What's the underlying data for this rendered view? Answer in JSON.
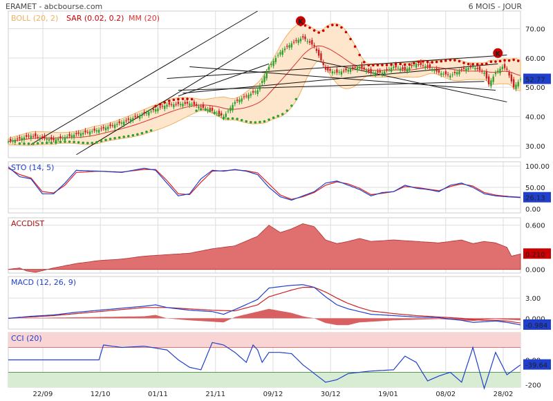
{
  "header": {
    "left": "ERAMET - abcbourse.com",
    "right": "6 MOIS - JOUR"
  },
  "colors": {
    "up": "#2ea02e",
    "down": "#cc2020",
    "boll": "#f0b060",
    "sar": "#cc0000",
    "mm": "#dd3030",
    "sto_k": "#1f3fcc",
    "sto_d": "#dd2020",
    "accdist": "#e07070",
    "macd": "#1f3fcc",
    "signal": "#cc2020",
    "hist": "#d86060",
    "cci": "#1f3fcc",
    "cci_top": "#f9d4d4",
    "cci_bottom": "#d7ecd3",
    "tag_blue": "#1f3fcc",
    "tag_red": "#cc0000"
  },
  "chart_data": [
    {
      "type": "candlestick",
      "title": "ERAMET",
      "subtitle": "6 MOIS - JOUR",
      "x_labels": [
        "22/09",
        "12/10",
        "01/11",
        "21/11",
        "09/12",
        "30/12",
        "19/01",
        "08/02",
        "28/02"
      ],
      "y_ticks": [
        30.0,
        40.0,
        50.0,
        60.0,
        70.0
      ],
      "ylim": [
        26,
        76
      ],
      "legend": [
        "BOLL (20, 2)",
        "SAR (0.02, 0.2)",
        "MM (20)"
      ],
      "last_value": "52.77",
      "close_points": [
        [
          0,
          31.5
        ],
        [
          10,
          33.5
        ],
        [
          20,
          32
        ],
        [
          30,
          34
        ],
        [
          40,
          35.5
        ],
        [
          50,
          38
        ],
        [
          60,
          41
        ],
        [
          70,
          44
        ],
        [
          80,
          44.5
        ],
        [
          90,
          42
        ],
        [
          95,
          40
        ],
        [
          100,
          45
        ],
        [
          105,
          47
        ],
        [
          110,
          49
        ],
        [
          115,
          57
        ],
        [
          120,
          62
        ],
        [
          125,
          65
        ],
        [
          130,
          67
        ],
        [
          135,
          64
        ],
        [
          140,
          56
        ],
        [
          145,
          55
        ],
        [
          150,
          56
        ],
        [
          155,
          57
        ],
        [
          160,
          55
        ],
        [
          165,
          55
        ],
        [
          170,
          57
        ],
        [
          175,
          56
        ],
        [
          180,
          58
        ],
        [
          185,
          57
        ],
        [
          190,
          55
        ],
        [
          195,
          54
        ],
        [
          200,
          56
        ],
        [
          205,
          57
        ],
        [
          210,
          55
        ],
        [
          212,
          51
        ],
        [
          215,
          55
        ],
        [
          218,
          57
        ],
        [
          220,
          56
        ],
        [
          222,
          52
        ],
        [
          223,
          50
        ],
        [
          226,
          52.77
        ]
      ],
      "n_days": 227,
      "markers": [
        {
          "label": "K",
          "near_x": 129
        },
        {
          "label": "K",
          "near_x": 216
        }
      ]
    },
    {
      "type": "line",
      "title": "STO (14, 5)",
      "y_ticks": [
        "0.00",
        "50.00",
        "100.00"
      ],
      "ylim": [
        -10,
        110
      ],
      "last_value": "26.13",
      "k": [
        [
          0,
          98
        ],
        [
          5,
          75
        ],
        [
          10,
          70
        ],
        [
          15,
          35
        ],
        [
          20,
          35
        ],
        [
          25,
          60
        ],
        [
          30,
          90
        ],
        [
          40,
          88
        ],
        [
          50,
          85
        ],
        [
          60,
          95
        ],
        [
          65,
          90
        ],
        [
          70,
          60
        ],
        [
          75,
          30
        ],
        [
          80,
          35
        ],
        [
          85,
          70
        ],
        [
          90,
          90
        ],
        [
          95,
          88
        ],
        [
          100,
          92
        ],
        [
          105,
          88
        ],
        [
          110,
          80
        ],
        [
          115,
          50
        ],
        [
          120,
          28
        ],
        [
          125,
          20
        ],
        [
          130,
          30
        ],
        [
          135,
          40
        ],
        [
          140,
          60
        ],
        [
          145,
          65
        ],
        [
          150,
          55
        ],
        [
          155,
          45
        ],
        [
          160,
          30
        ],
        [
          165,
          38
        ],
        [
          170,
          40
        ],
        [
          175,
          55
        ],
        [
          180,
          48
        ],
        [
          185,
          45
        ],
        [
          190,
          40
        ],
        [
          195,
          55
        ],
        [
          200,
          60
        ],
        [
          205,
          50
        ],
        [
          210,
          35
        ],
        [
          215,
          30
        ],
        [
          220,
          28
        ],
        [
          226,
          26
        ]
      ],
      "d": [
        [
          0,
          95
        ],
        [
          5,
          80
        ],
        [
          10,
          72
        ],
        [
          15,
          40
        ],
        [
          20,
          37
        ],
        [
          25,
          55
        ],
        [
          30,
          85
        ],
        [
          40,
          88
        ],
        [
          50,
          86
        ],
        [
          60,
          92
        ],
        [
          65,
          92
        ],
        [
          70,
          66
        ],
        [
          75,
          35
        ],
        [
          80,
          33
        ],
        [
          85,
          62
        ],
        [
          90,
          88
        ],
        [
          95,
          89
        ],
        [
          100,
          91
        ],
        [
          105,
          89
        ],
        [
          110,
          84
        ],
        [
          115,
          58
        ],
        [
          120,
          32
        ],
        [
          125,
          22
        ],
        [
          130,
          28
        ],
        [
          135,
          38
        ],
        [
          140,
          55
        ],
        [
          145,
          63
        ],
        [
          150,
          58
        ],
        [
          155,
          48
        ],
        [
          160,
          33
        ],
        [
          165,
          36
        ],
        [
          170,
          40
        ],
        [
          175,
          52
        ],
        [
          180,
          50
        ],
        [
          185,
          46
        ],
        [
          190,
          42
        ],
        [
          195,
          52
        ],
        [
          200,
          58
        ],
        [
          205,
          53
        ],
        [
          210,
          38
        ],
        [
          215,
          32
        ],
        [
          220,
          29
        ],
        [
          226,
          27
        ]
      ]
    },
    {
      "type": "area",
      "title": "ACCDIST",
      "y_ticks": [
        "0.000",
        "0.600"
      ],
      "ylim": [
        -0.05,
        0.7
      ],
      "last_value": "0.210",
      "values": [
        [
          0,
          0
        ],
        [
          5,
          0.02
        ],
        [
          8,
          -0.02
        ],
        [
          12,
          -0.04
        ],
        [
          20,
          0.02
        ],
        [
          30,
          0.08
        ],
        [
          40,
          0.12
        ],
        [
          50,
          0.14
        ],
        [
          60,
          0.18
        ],
        [
          70,
          0.2
        ],
        [
          80,
          0.22
        ],
        [
          90,
          0.28
        ],
        [
          100,
          0.32
        ],
        [
          110,
          0.45
        ],
        [
          115,
          0.6
        ],
        [
          120,
          0.5
        ],
        [
          125,
          0.55
        ],
        [
          130,
          0.62
        ],
        [
          135,
          0.58
        ],
        [
          140,
          0.4
        ],
        [
          145,
          0.35
        ],
        [
          150,
          0.38
        ],
        [
          155,
          0.42
        ],
        [
          160,
          0.38
        ],
        [
          170,
          0.4
        ],
        [
          180,
          0.38
        ],
        [
          190,
          0.36
        ],
        [
          200,
          0.4
        ],
        [
          205,
          0.35
        ],
        [
          210,
          0.38
        ],
        [
          215,
          0.36
        ],
        [
          220,
          0.3
        ],
        [
          222,
          0.18
        ],
        [
          226,
          0.21
        ]
      ]
    },
    {
      "type": "line",
      "title": "MACD (12, 26, 9)",
      "y_ticks": [
        "0.000",
        "3.00"
      ],
      "ylim": [
        -1.6,
        6.2
      ],
      "last_value": "-0.984",
      "macd": [
        [
          0,
          0
        ],
        [
          10,
          0.3
        ],
        [
          20,
          0.5
        ],
        [
          30,
          0.9
        ],
        [
          40,
          1.2
        ],
        [
          50,
          1.5
        ],
        [
          60,
          1.8
        ],
        [
          65,
          2.0
        ],
        [
          70,
          1.6
        ],
        [
          80,
          1.2
        ],
        [
          90,
          1.0
        ],
        [
          95,
          0.6
        ],
        [
          100,
          1.3
        ],
        [
          110,
          2.8
        ],
        [
          115,
          4.5
        ],
        [
          125,
          4.9
        ],
        [
          130,
          5.0
        ],
        [
          135,
          4.6
        ],
        [
          140,
          3.2
        ],
        [
          145,
          2.0
        ],
        [
          150,
          1.4
        ],
        [
          155,
          1.0
        ],
        [
          160,
          0.6
        ],
        [
          170,
          0.4
        ],
        [
          180,
          0.2
        ],
        [
          190,
          0.1
        ],
        [
          200,
          -0.3
        ],
        [
          205,
          -0.6
        ],
        [
          210,
          -0.5
        ],
        [
          215,
          -0.4
        ],
        [
          220,
          -0.6
        ],
        [
          226,
          -0.98
        ]
      ],
      "signal": [
        [
          0,
          0
        ],
        [
          10,
          0.2
        ],
        [
          20,
          0.4
        ],
        [
          30,
          0.7
        ],
        [
          40,
          1.0
        ],
        [
          50,
          1.3
        ],
        [
          60,
          1.6
        ],
        [
          70,
          1.6
        ],
        [
          80,
          1.4
        ],
        [
          90,
          1.2
        ],
        [
          100,
          1.1
        ],
        [
          110,
          2.0
        ],
        [
          115,
          3.2
        ],
        [
          125,
          4.2
        ],
        [
          130,
          4.6
        ],
        [
          135,
          4.6
        ],
        [
          140,
          3.9
        ],
        [
          145,
          3.0
        ],
        [
          150,
          2.2
        ],
        [
          155,
          1.6
        ],
        [
          160,
          1.1
        ],
        [
          170,
          0.7
        ],
        [
          180,
          0.4
        ],
        [
          190,
          0.2
        ],
        [
          200,
          0.0
        ],
        [
          205,
          -0.2
        ],
        [
          210,
          -0.3
        ],
        [
          215,
          -0.3
        ],
        [
          220,
          -0.4
        ],
        [
          226,
          -0.7
        ]
      ],
      "hist": [
        [
          0,
          0
        ],
        [
          60,
          0.3
        ],
        [
          65,
          0.5
        ],
        [
          70,
          0
        ],
        [
          80,
          -0.3
        ],
        [
          95,
          -0.6
        ],
        [
          100,
          0.2
        ],
        [
          110,
          1.0
        ],
        [
          115,
          1.4
        ],
        [
          125,
          0.8
        ],
        [
          130,
          0.3
        ],
        [
          135,
          0.0
        ],
        [
          140,
          -0.7
        ],
        [
          145,
          -1.0
        ],
        [
          150,
          -1.0
        ],
        [
          155,
          -0.6
        ],
        [
          160,
          -0.5
        ],
        [
          170,
          -0.3
        ],
        [
          180,
          -0.2
        ],
        [
          190,
          -0.1
        ],
        [
          200,
          -0.3
        ],
        [
          205,
          -0.4
        ],
        [
          210,
          -0.2
        ],
        [
          215,
          -0.1
        ],
        [
          220,
          -0.2
        ],
        [
          226,
          -0.3
        ]
      ]
    },
    {
      "type": "line",
      "title": "CCI (20)",
      "y_ticks": [
        "-200",
        "0.00"
      ],
      "ylim": [
        -220,
        220
      ],
      "last_value": "-39.64",
      "values": [
        [
          0,
          0
        ],
        [
          40,
          0
        ],
        [
          42,
          120
        ],
        [
          50,
          100
        ],
        [
          60,
          110
        ],
        [
          70,
          80
        ],
        [
          75,
          0
        ],
        [
          80,
          -60
        ],
        [
          85,
          -80
        ],
        [
          90,
          140
        ],
        [
          95,
          120
        ],
        [
          100,
          60
        ],
        [
          105,
          -20
        ],
        [
          108,
          120
        ],
        [
          110,
          80
        ],
        [
          112,
          -20
        ],
        [
          115,
          60
        ],
        [
          120,
          60
        ],
        [
          125,
          50
        ],
        [
          130,
          -40
        ],
        [
          135,
          -110
        ],
        [
          140,
          -180
        ],
        [
          145,
          -160
        ],
        [
          150,
          -110
        ],
        [
          160,
          -90
        ],
        [
          170,
          -80
        ],
        [
          175,
          30
        ],
        [
          180,
          -20
        ],
        [
          185,
          -170
        ],
        [
          190,
          -130
        ],
        [
          195,
          -100
        ],
        [
          200,
          -180
        ],
        [
          205,
          100
        ],
        [
          210,
          -230
        ],
        [
          215,
          60
        ],
        [
          220,
          -120
        ],
        [
          226,
          -40
        ]
      ]
    }
  ]
}
